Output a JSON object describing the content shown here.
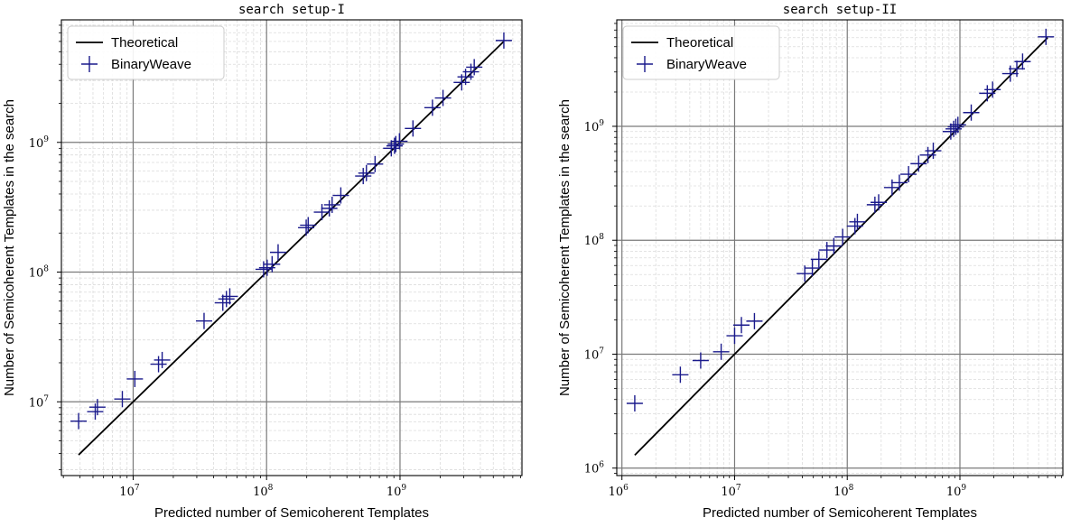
{
  "chart_data": [
    {
      "type": "scatter",
      "title": "search setup-I",
      "xlabel": "Predicted number of Semicoherent Templates",
      "ylabel": "Number of Semicoherent Templates in the search",
      "xscale": "log",
      "yscale": "log",
      "xlim": [
        2900000.0,
        8200000000.0
      ],
      "ylim": [
        2700000.0,
        8800000000.0
      ],
      "xticks": [
        10000000.0,
        100000000.0,
        1000000000.0
      ],
      "xtick_labels": [
        [
          "10",
          "7"
        ],
        [
          "10",
          "8"
        ],
        [
          "10",
          "9"
        ]
      ],
      "yticks": [
        10000000.0,
        100000000.0,
        1000000000.0
      ],
      "ytick_labels": [
        [
          "10",
          "7"
        ],
        [
          "10",
          "8"
        ],
        [
          "10",
          "9"
        ]
      ],
      "grid": true,
      "legend": "top-left",
      "series": [
        {
          "name": "Theoretical",
          "kind": "line",
          "color": "#000000",
          "x": [
            3900000.0,
            6000000000.0
          ],
          "y": [
            3900000.0,
            6000000000.0
          ]
        },
        {
          "name": "BinaryWeave",
          "kind": "plus",
          "color": "#1a1a8c",
          "x": [
            3900000.0,
            5200000.0,
            5400000.0,
            8300000.0,
            10300000.0,
            15500000.0,
            16500000.0,
            34000000.0,
            47000000.0,
            50000000.0,
            53000000.0,
            95000000.0,
            101000000.0,
            110000000.0,
            122000000.0,
            198000000.0,
            205000000.0,
            260000000.0,
            295000000.0,
            310000000.0,
            360000000.0,
            530000000.0,
            560000000.0,
            650000000.0,
            860000000.0,
            910000000.0,
            930000000.0,
            990000000.0,
            1250000000.0,
            1750000000.0,
            2100000000.0,
            2900000000.0,
            3100000000.0,
            3400000000.0,
            3600000000.0,
            6000000000.0
          ],
          "y": [
            7100000.0,
            8400000.0,
            9100000.0,
            10500000.0,
            15000000.0,
            19500000.0,
            21000000.0,
            42000000.0,
            58000000.0,
            62000000.0,
            65000000.0,
            105000000.0,
            108000000.0,
            115000000.0,
            142000000.0,
            220000000.0,
            230000000.0,
            290000000.0,
            310000000.0,
            330000000.0,
            390000000.0,
            550000000.0,
            580000000.0,
            680000000.0,
            900000000.0,
            940000000.0,
            970000000.0,
            1020000000.0,
            1280000000.0,
            1850000000.0,
            2200000000.0,
            2900000000.0,
            3200000000.0,
            3500000000.0,
            3800000000.0,
            6100000000.0
          ]
        }
      ]
    },
    {
      "type": "scatter",
      "title": "search setup-II",
      "xlabel": "Predicted number of Semicoherent Templates",
      "ylabel": "Number of Semicoherent Templates in the search",
      "xscale": "log",
      "yscale": "log",
      "xlim": [
        900000.0,
        8200000000.0
      ],
      "ylim": [
        860000.0,
        8600000000.0
      ],
      "xticks": [
        1000000.0,
        10000000.0,
        100000000.0,
        1000000000.0
      ],
      "xtick_labels": [
        [
          "10",
          "6"
        ],
        [
          "10",
          "7"
        ],
        [
          "10",
          "8"
        ],
        [
          "10",
          "9"
        ]
      ],
      "yticks": [
        1000000.0,
        10000000.0,
        100000000.0,
        1000000000.0
      ],
      "ytick_labels": [
        [
          "10",
          "6"
        ],
        [
          "10",
          "7"
        ],
        [
          "10",
          "8"
        ],
        [
          "10",
          "9"
        ]
      ],
      "grid": true,
      "legend": "top-left",
      "series": [
        {
          "name": "Theoretical",
          "kind": "line",
          "color": "#000000",
          "x": [
            1300000.0,
            6000000000.0
          ],
          "y": [
            1300000.0,
            6000000000.0
          ]
        },
        {
          "name": "BinaryWeave",
          "kind": "plus",
          "color": "#1a1a8c",
          "x": [
            1300000.0,
            3300000.0,
            5000000.0,
            7600000.0,
            10000000.0,
            11500000.0,
            15000000.0,
            42000000.0,
            49000000.0,
            56000000.0,
            66000000.0,
            76000000.0,
            91000000.0,
            117000000.0,
            123000000.0,
            176000000.0,
            190000000.0,
            250000000.0,
            290000000.0,
            350000000.0,
            430000000.0,
            520000000.0,
            580000000.0,
            830000000.0,
            880000000.0,
            920000000.0,
            960000000.0,
            1260000000.0,
            1750000000.0,
            1950000000.0,
            2800000000.0,
            3200000000.0,
            3600000000.0,
            5800000000.0
          ],
          "y": [
            3700000.0,
            6600000.0,
            8800000.0,
            10500000.0,
            14500000.0,
            18000000.0,
            19500000.0,
            51000000.0,
            57000000.0,
            68000000.0,
            82000000.0,
            89000000.0,
            107000000.0,
            133000000.0,
            145000000.0,
            205000000.0,
            215000000.0,
            290000000.0,
            320000000.0,
            380000000.0,
            470000000.0,
            560000000.0,
            610000000.0,
            900000000.0,
            950000000.0,
            990000000.0,
            1030000000.0,
            1320000000.0,
            1950000000.0,
            2100000000.0,
            2900000000.0,
            3200000000.0,
            3700000000.0,
            6100000000.0
          ]
        }
      ]
    }
  ]
}
